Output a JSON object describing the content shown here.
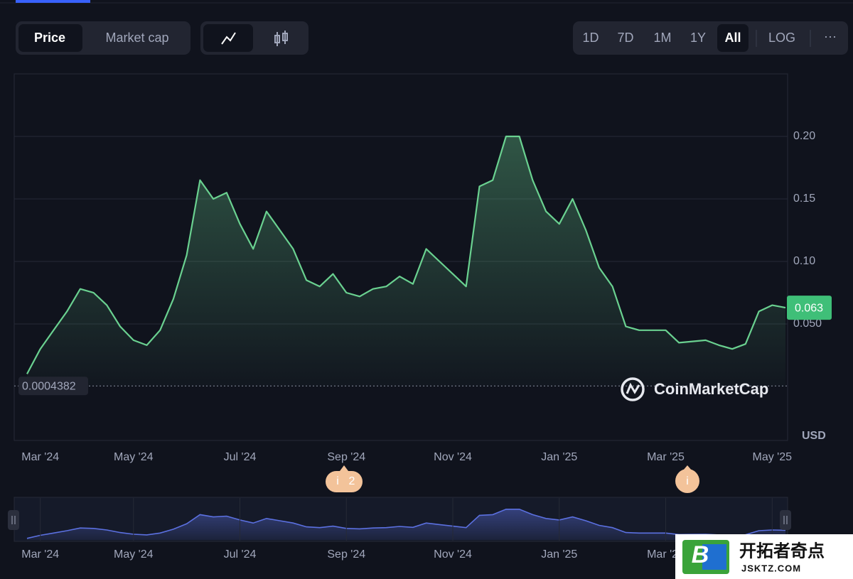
{
  "toolbar": {
    "tabs": [
      "Price",
      "Market cap"
    ],
    "ranges": [
      "1D",
      "7D",
      "1M",
      "1Y",
      "All",
      "LOG",
      "···"
    ]
  },
  "chart_data": {
    "type": "line",
    "categories": [
      null,
      "Mar '24",
      null,
      null,
      null,
      null,
      null,
      null,
      "May '24",
      null,
      null,
      null,
      null,
      null,
      null,
      null,
      "Jul '24",
      null,
      null,
      null,
      null,
      null,
      null,
      null,
      "Sep '24",
      null,
      null,
      null,
      null,
      null,
      null,
      null,
      "Nov '24",
      null,
      null,
      null,
      null,
      null,
      null,
      null,
      "Jan '25",
      null,
      null,
      null,
      null,
      null,
      null,
      null,
      "Mar '25",
      null,
      null,
      null,
      null,
      null,
      null,
      null,
      "May '25",
      null
    ],
    "values": [
      0.01,
      0.03,
      0.045,
      0.06,
      0.078,
      0.075,
      0.065,
      0.048,
      0.037,
      0.033,
      0.045,
      0.07,
      0.105,
      0.165,
      0.15,
      0.155,
      0.13,
      0.11,
      0.14,
      0.125,
      0.11,
      0.085,
      0.08,
      0.09,
      0.075,
      0.072,
      0.078,
      0.08,
      0.088,
      0.082,
      0.11,
      0.1,
      0.09,
      0.08,
      0.16,
      0.165,
      0.2,
      0.2,
      0.165,
      0.14,
      0.13,
      0.15,
      0.125,
      0.095,
      0.08,
      0.048,
      0.045,
      0.045,
      0.045,
      0.035,
      0.036,
      0.037,
      0.033,
      0.03,
      0.034,
      0.06,
      0.065,
      0.063
    ],
    "color": "#6ad190",
    "navigator_color": "#5b70e0",
    "ylim": [
      0,
      0.25
    ],
    "yticks": [
      {
        "value": 0.05,
        "label": "0.050"
      },
      {
        "value": 0.1,
        "label": "0.10"
      },
      0.15,
      {
        "value": 0.2,
        "label": "0.20"
      }
    ],
    "grid": true,
    "current_price": 0.063,
    "low_line": 0.0004382,
    "currency": "USD"
  },
  "watermark": "CoinMarketCap",
  "events": [
    {
      "icon": "i",
      "count": "2"
    },
    {
      "icon": "i"
    }
  ],
  "footer_logo": {
    "letter": "B",
    "name": "开拓者奇点",
    "site": "JSKTZ.COM"
  }
}
